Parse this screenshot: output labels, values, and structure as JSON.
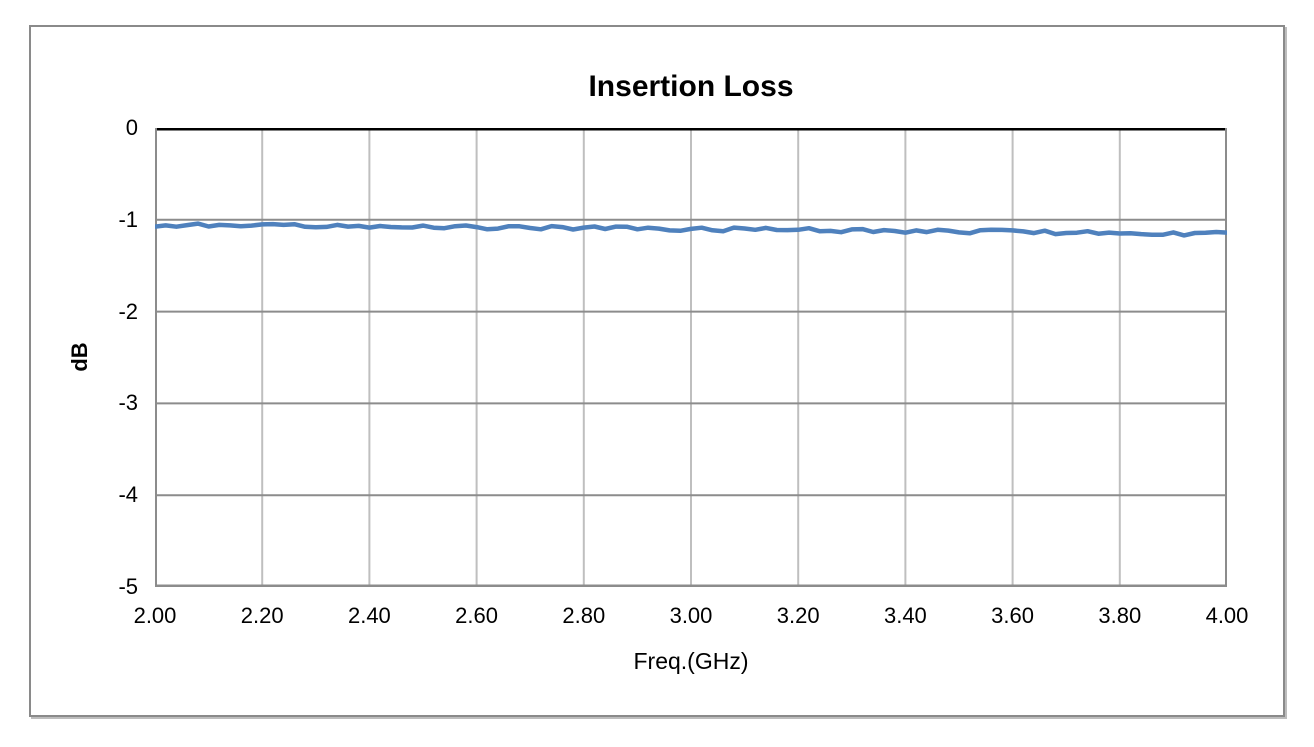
{
  "figure": {
    "title": "Insertion Loss"
  },
  "axes": {
    "x_title": "Freq.(GHz)",
    "y_title": "dB"
  },
  "colors": {
    "series_line": "#4F81BD",
    "gridline_horizontal": "#8c8c8c",
    "gridline_vertical": "#bfbfbf",
    "plot_top_border": "#000000",
    "plot_frame": "#8c8c8c",
    "outer_border": "#8a8a8a",
    "text": "#000000"
  },
  "chart_data": {
    "type": "line",
    "title": "Insertion Loss",
    "xlabel": "Freq.(GHz)",
    "ylabel": "dB",
    "xlim": [
      2.0,
      4.0
    ],
    "ylim": [
      -5,
      0
    ],
    "grid": true,
    "legend": false,
    "x_ticks": [
      "2.00",
      "2.20",
      "2.40",
      "2.60",
      "2.80",
      "3.00",
      "3.20",
      "3.40",
      "3.60",
      "3.80",
      "4.00"
    ],
    "y_ticks": [
      "0",
      "-1",
      "-2",
      "-3",
      "-4",
      "-5"
    ],
    "series": [
      {
        "name": "Insertion Loss",
        "color": "#4F81BD",
        "x_start": 2.0,
        "x_step": 0.02,
        "values": [
          -1.074,
          -1.061,
          -1.075,
          -1.058,
          -1.041,
          -1.073,
          -1.056,
          -1.061,
          -1.071,
          -1.063,
          -1.05,
          -1.047,
          -1.056,
          -1.048,
          -1.076,
          -1.081,
          -1.077,
          -1.056,
          -1.074,
          -1.066,
          -1.085,
          -1.068,
          -1.078,
          -1.083,
          -1.084,
          -1.063,
          -1.086,
          -1.091,
          -1.07,
          -1.062,
          -1.08,
          -1.104,
          -1.096,
          -1.07,
          -1.071,
          -1.089,
          -1.104,
          -1.069,
          -1.079,
          -1.106,
          -1.085,
          -1.073,
          -1.1,
          -1.074,
          -1.075,
          -1.103,
          -1.086,
          -1.096,
          -1.115,
          -1.12,
          -1.099,
          -1.086,
          -1.114,
          -1.124,
          -1.085,
          -1.095,
          -1.109,
          -1.088,
          -1.111,
          -1.112,
          -1.109,
          -1.092,
          -1.124,
          -1.121,
          -1.135,
          -1.105,
          -1.101,
          -1.133,
          -1.112,
          -1.122,
          -1.141,
          -1.115,
          -1.134,
          -1.109,
          -1.118,
          -1.137,
          -1.147,
          -1.113,
          -1.109,
          -1.11,
          -1.116,
          -1.126,
          -1.145,
          -1.119,
          -1.156,
          -1.144,
          -1.14,
          -1.124,
          -1.151,
          -1.139,
          -1.149,
          -1.146,
          -1.156,
          -1.162,
          -1.163,
          -1.137,
          -1.17,
          -1.144,
          -1.141,
          -1.133,
          -1.139
        ]
      }
    ]
  }
}
